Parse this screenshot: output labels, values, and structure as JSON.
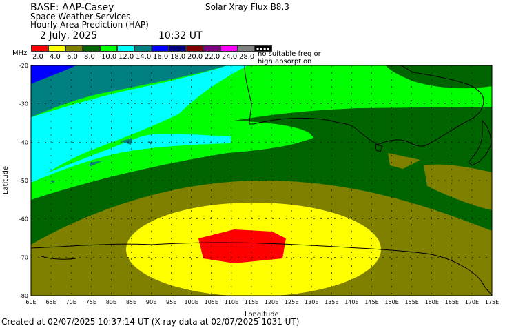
{
  "header": {
    "base": "BASE: AAP-Casey",
    "service": "Space Weather Services",
    "product": "Hourly Area Prediction (HAP)",
    "date": "2 July, 2025",
    "time": "10:32 UT",
    "flux": "Solar Xray Flux B8.3"
  },
  "legend": {
    "unit": "MHz",
    "items": [
      {
        "label": "2.0",
        "color": "#ff0000"
      },
      {
        "label": "4.0",
        "color": "#ffff00"
      },
      {
        "label": "6.0",
        "color": "#808000"
      },
      {
        "label": "8.0",
        "color": "#006400"
      },
      {
        "label": "10.0",
        "color": "#00ff00"
      },
      {
        "label": "12.0",
        "color": "#00ffff"
      },
      {
        "label": "14.0",
        "color": "#008080"
      },
      {
        "label": "16.0",
        "color": "#0000ff"
      },
      {
        "label": "18.0",
        "color": "#000080"
      },
      {
        "label": "20.0",
        "color": "#800000"
      },
      {
        "label": "22.0",
        "color": "#800080"
      },
      {
        "label": "24.0",
        "color": "#ff00ff"
      },
      {
        "label": "28.0",
        "color": "#808080"
      }
    ],
    "no_freq_line1": "no suitable freq or",
    "no_freq_line2": "high absorption"
  },
  "axes": {
    "ylabel": "Latitude",
    "xlabel": "Longitude",
    "yticks": [
      "-20",
      "-30",
      "-40",
      "-50",
      "-60",
      "-70",
      "-80"
    ],
    "xticks": [
      "60E",
      "65E",
      "70E",
      "75E",
      "80E",
      "85E",
      "90E",
      "95E",
      "100E",
      "105E",
      "110E",
      "115E",
      "120E",
      "125E",
      "130E",
      "135E",
      "140E",
      "145E",
      "150E",
      "155E",
      "160E",
      "165E",
      "170E",
      "175E"
    ]
  },
  "footer": {
    "created": "Created at 02/07/2025 10:37:14 UT (X-ray data at 02/07/2025 1031 UT)"
  }
}
